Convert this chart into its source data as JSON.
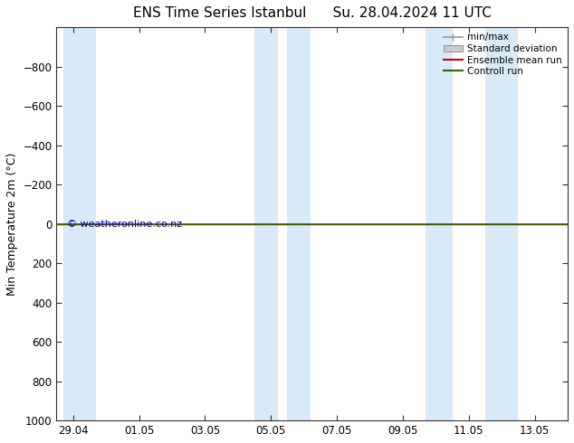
{
  "title": "ENS Time Series Istanbul      Su. 28.04.2024 11 UTC",
  "ylabel": "Min Temperature 2m (°C)",
  "ylim_top": -1000,
  "ylim_bottom": 1000,
  "yticks": [
    -800,
    -600,
    -400,
    -200,
    0,
    200,
    400,
    600,
    800,
    1000
  ],
  "xtick_labels": [
    "29.04",
    "01.05",
    "03.05",
    "05.05",
    "07.05",
    "09.05",
    "11.05",
    "13.05"
  ],
  "xtick_positions": [
    0,
    2,
    4,
    6,
    8,
    10,
    12,
    14
  ],
  "shaded_x_ranges": [
    [
      -0.3,
      0.7
    ],
    [
      5.5,
      6.2
    ],
    [
      6.5,
      7.2
    ],
    [
      10.7,
      11.5
    ],
    [
      12.5,
      13.5
    ]
  ],
  "background_color": "#ffffff",
  "shaded_color": "#d8eaf8",
  "control_run_color": "#336600",
  "ensemble_mean_color": "#cc0000",
  "watermark_text": "© weatheronline.co.nz",
  "watermark_color": "#0000bb",
  "legend_labels": [
    "min/max",
    "Standard deviation",
    "Ensemble mean run",
    "Controll run"
  ],
  "minmax_color": "#999999",
  "stddev_color": "#cccccc",
  "xmin": -0.5,
  "xmax": 15.0
}
